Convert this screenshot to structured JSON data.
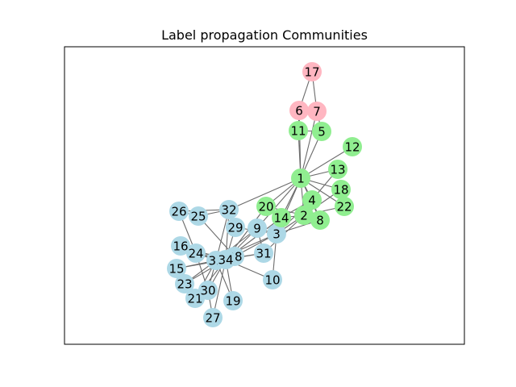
{
  "title": "Label propagation Communities",
  "colors": {
    "community_a": "#90ee90",
    "community_b": "#add8e6",
    "community_c": "#ffb6c1",
    "edge": "#6b6b6b",
    "frame": "#000000"
  },
  "nodes": [
    {
      "id": "1",
      "community": "community_a"
    },
    {
      "id": "2",
      "community": "community_a"
    },
    {
      "id": "3",
      "community": "community_b"
    },
    {
      "id": "4",
      "community": "community_a"
    },
    {
      "id": "5",
      "community": "community_a"
    },
    {
      "id": "6",
      "community": "community_c"
    },
    {
      "id": "7",
      "community": "community_c"
    },
    {
      "id": "8",
      "community": "community_a"
    },
    {
      "id": "9",
      "community": "community_b"
    },
    {
      "id": "10",
      "community": "community_b"
    },
    {
      "id": "11",
      "community": "community_a"
    },
    {
      "id": "12",
      "community": "community_a"
    },
    {
      "id": "13",
      "community": "community_a"
    },
    {
      "id": "14",
      "community": "community_a"
    },
    {
      "id": "15",
      "community": "community_b"
    },
    {
      "id": "16",
      "community": "community_b"
    },
    {
      "id": "17",
      "community": "community_c"
    },
    {
      "id": "18",
      "community": "community_a"
    },
    {
      "id": "19",
      "community": "community_b"
    },
    {
      "id": "20",
      "community": "community_a"
    },
    {
      "id": "21",
      "community": "community_b"
    },
    {
      "id": "22",
      "community": "community_a"
    },
    {
      "id": "23",
      "community": "community_b"
    },
    {
      "id": "24",
      "community": "community_b"
    },
    {
      "id": "25",
      "community": "community_b"
    },
    {
      "id": "26",
      "community": "community_b"
    },
    {
      "id": "27",
      "community": "community_b"
    },
    {
      "id": "28",
      "community": "community_b"
    },
    {
      "id": "29",
      "community": "community_b"
    },
    {
      "id": "30",
      "community": "community_b"
    },
    {
      "id": "31",
      "community": "community_b"
    },
    {
      "id": "32",
      "community": "community_b"
    },
    {
      "id": "33",
      "community": "community_b"
    },
    {
      "id": "34",
      "community": "community_b"
    }
  ],
  "edges": [
    [
      "1",
      "2"
    ],
    [
      "1",
      "3"
    ],
    [
      "1",
      "4"
    ],
    [
      "1",
      "5"
    ],
    [
      "1",
      "6"
    ],
    [
      "1",
      "7"
    ],
    [
      "1",
      "8"
    ],
    [
      "1",
      "9"
    ],
    [
      "1",
      "11"
    ],
    [
      "1",
      "12"
    ],
    [
      "1",
      "13"
    ],
    [
      "1",
      "14"
    ],
    [
      "1",
      "18"
    ],
    [
      "1",
      "20"
    ],
    [
      "1",
      "22"
    ],
    [
      "1",
      "32"
    ],
    [
      "2",
      "3"
    ],
    [
      "2",
      "4"
    ],
    [
      "2",
      "8"
    ],
    [
      "2",
      "14"
    ],
    [
      "2",
      "18"
    ],
    [
      "2",
      "20"
    ],
    [
      "2",
      "22"
    ],
    [
      "2",
      "31"
    ],
    [
      "3",
      "4"
    ],
    [
      "3",
      "8"
    ],
    [
      "3",
      "9"
    ],
    [
      "3",
      "10"
    ],
    [
      "3",
      "14"
    ],
    [
      "3",
      "28"
    ],
    [
      "3",
      "29"
    ],
    [
      "3",
      "33"
    ],
    [
      "4",
      "8"
    ],
    [
      "4",
      "13"
    ],
    [
      "4",
      "14"
    ],
    [
      "5",
      "7"
    ],
    [
      "5",
      "11"
    ],
    [
      "6",
      "7"
    ],
    [
      "6",
      "11"
    ],
    [
      "6",
      "17"
    ],
    [
      "7",
      "17"
    ],
    [
      "9",
      "31"
    ],
    [
      "9",
      "33"
    ],
    [
      "9",
      "34"
    ],
    [
      "10",
      "34"
    ],
    [
      "14",
      "34"
    ],
    [
      "15",
      "33"
    ],
    [
      "15",
      "34"
    ],
    [
      "16",
      "33"
    ],
    [
      "16",
      "34"
    ],
    [
      "19",
      "33"
    ],
    [
      "19",
      "34"
    ],
    [
      "20",
      "34"
    ],
    [
      "21",
      "33"
    ],
    [
      "21",
      "34"
    ],
    [
      "23",
      "33"
    ],
    [
      "23",
      "34"
    ],
    [
      "24",
      "26"
    ],
    [
      "24",
      "28"
    ],
    [
      "24",
      "30"
    ],
    [
      "24",
      "33"
    ],
    [
      "24",
      "34"
    ],
    [
      "25",
      "26"
    ],
    [
      "25",
      "28"
    ],
    [
      "25",
      "32"
    ],
    [
      "26",
      "32"
    ],
    [
      "27",
      "30"
    ],
    [
      "27",
      "34"
    ],
    [
      "28",
      "34"
    ],
    [
      "29",
      "32"
    ],
    [
      "29",
      "34"
    ],
    [
      "30",
      "33"
    ],
    [
      "30",
      "34"
    ],
    [
      "31",
      "33"
    ],
    [
      "31",
      "34"
    ],
    [
      "32",
      "33"
    ],
    [
      "32",
      "34"
    ],
    [
      "33",
      "34"
    ]
  ]
}
